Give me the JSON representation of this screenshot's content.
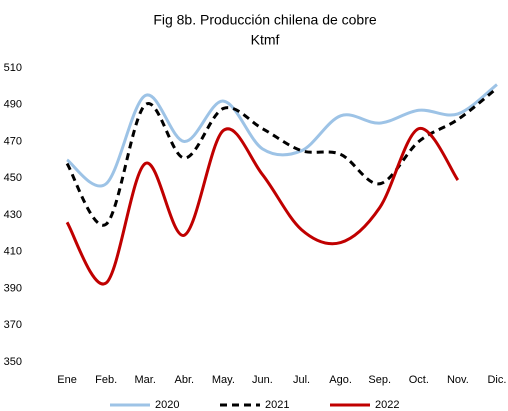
{
  "chart_data": {
    "type": "line",
    "title": "Fig 8b. Producción  chilena de cobre",
    "subtitle": "Ktmf",
    "categories": [
      "Ene",
      "Feb.",
      "Mar.",
      "Abr.",
      "May.",
      "Jun.",
      "Jul.",
      "Ago.",
      "Sep.",
      "Oct.",
      "Nov.",
      "Dic."
    ],
    "series": [
      {
        "name": "2020",
        "color": "#9dc3e6",
        "dashed": false,
        "values": [
          460,
          447,
          495,
          470,
          492,
          466,
          465,
          484,
          480,
          487,
          485,
          501
        ]
      },
      {
        "name": "2021",
        "color": "#000000",
        "dashed": true,
        "values": [
          458,
          425,
          490,
          461,
          488,
          477,
          465,
          463,
          447,
          470,
          482,
          499
        ]
      },
      {
        "name": "2022",
        "color": "#c00000",
        "dashed": false,
        "values": [
          426,
          393,
          458,
          419,
          476,
          452,
          422,
          415,
          434,
          477,
          449,
          null
        ]
      }
    ],
    "ylim": [
      350,
      510
    ],
    "yticks": [
      350,
      370,
      390,
      410,
      430,
      450,
      470,
      490,
      510
    ],
    "smooth": true,
    "grid": false,
    "legend": "bottom"
  }
}
